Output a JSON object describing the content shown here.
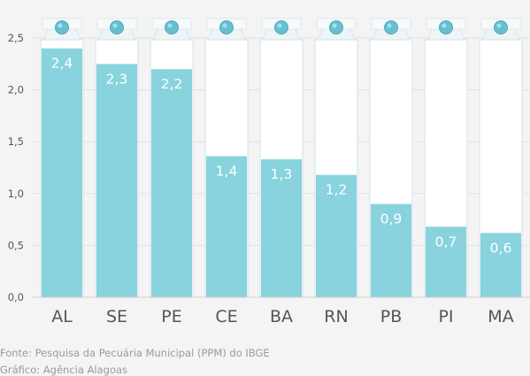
{
  "chart_data": {
    "type": "bar",
    "categories": [
      "AL",
      "SE",
      "PE",
      "CE",
      "BA",
      "RN",
      "PB",
      "PI",
      "MA"
    ],
    "values": [
      2.4,
      2.25,
      2.2,
      1.36,
      1.33,
      1.18,
      0.9,
      0.68,
      0.62
    ],
    "data_labels": [
      "2,4",
      "2,3",
      "2,2",
      "1,4",
      "1,3",
      "1,2",
      "0,9",
      "0,7",
      "0,6"
    ],
    "ylim": [
      0,
      2.5
    ],
    "yticks": [
      "0,0",
      "0,5",
      "1,0",
      "1,5",
      "2,0",
      "2,5"
    ],
    "grid": true,
    "bar_color": "#88d3dd",
    "carton_color": "#ffffff",
    "cap_color": "#67bfd0",
    "grid_color": "#e1e1e1"
  },
  "footer": {
    "source": "Fonte: Pesquisa da Pecuária Municipal (PPM) do IBGE",
    "credit": "Gráfico: Agência Alagoas"
  }
}
